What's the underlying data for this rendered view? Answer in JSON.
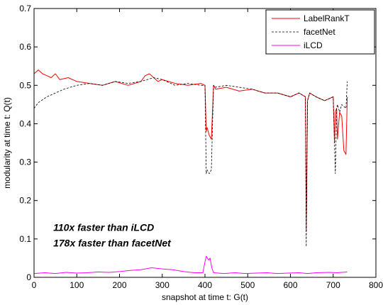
{
  "chart_data": {
    "type": "line",
    "xlabel": "snapshot at time t: G(t)",
    "ylabel": "modularity at time t: Q(t)",
    "xlim": [
      0,
      800
    ],
    "ylim": [
      0,
      0.7
    ],
    "xticks": [
      0,
      100,
      200,
      300,
      400,
      500,
      600,
      700,
      800
    ],
    "yticks": [
      0,
      0.1,
      0.2,
      0.3,
      0.4,
      0.5,
      0.6,
      0.7
    ],
    "xtick_labels": [
      "0",
      "100",
      "200",
      "300",
      "400",
      "500",
      "600",
      "700",
      "800"
    ],
    "ytick_labels": [
      "0",
      "0.1",
      "0.2",
      "0.3",
      "0.4",
      "0.5",
      "0.6",
      "0.7"
    ],
    "grid": false,
    "legend_position": "top-right",
    "annotations": [
      "110x faster than iLCD",
      "178x faster than facetNet"
    ],
    "series": [
      {
        "name": "LabelRankT",
        "color": "#ff0000",
        "style": "solid",
        "x": [
          0,
          10,
          20,
          30,
          40,
          50,
          60,
          80,
          100,
          130,
          160,
          190,
          220,
          250,
          260,
          270,
          280,
          290,
          300,
          330,
          360,
          390,
          400,
          403,
          405,
          410,
          415,
          420,
          425,
          450,
          480,
          510,
          540,
          570,
          600,
          620,
          635,
          637,
          640,
          645,
          660,
          680,
          700,
          703,
          705,
          708,
          710,
          715,
          720,
          725,
          730,
          733
        ],
        "y": [
          0.53,
          0.54,
          0.53,
          0.525,
          0.52,
          0.53,
          0.515,
          0.52,
          0.51,
          0.505,
          0.5,
          0.51,
          0.5,
          0.51,
          0.525,
          0.53,
          0.52,
          0.51,
          0.515,
          0.505,
          0.5,
          0.505,
          0.5,
          0.38,
          0.39,
          0.37,
          0.36,
          0.5,
          0.49,
          0.495,
          0.485,
          0.49,
          0.48,
          0.48,
          0.47,
          0.48,
          0.47,
          0.12,
          0.46,
          0.48,
          0.47,
          0.46,
          0.47,
          0.35,
          0.43,
          0.44,
          0.36,
          0.43,
          0.42,
          0.33,
          0.32,
          0.47
        ]
      },
      {
        "name": "facetNet",
        "color": "#000000",
        "style": "dashed",
        "x": [
          0,
          10,
          30,
          50,
          70,
          100,
          130,
          160,
          190,
          220,
          250,
          280,
          300,
          330,
          360,
          390,
          400,
          403,
          405,
          410,
          415,
          420,
          425,
          450,
          480,
          510,
          540,
          570,
          600,
          620,
          635,
          637,
          640,
          645,
          660,
          680,
          700,
          705,
          708,
          710,
          715,
          720,
          730,
          733
        ],
        "y": [
          0.44,
          0.455,
          0.47,
          0.48,
          0.49,
          0.5,
          0.505,
          0.5,
          0.51,
          0.505,
          0.51,
          0.52,
          0.515,
          0.5,
          0.505,
          0.5,
          0.5,
          0.27,
          0.28,
          0.27,
          0.28,
          0.5,
          0.495,
          0.5,
          0.495,
          0.49,
          0.48,
          0.48,
          0.47,
          0.48,
          0.47,
          0.08,
          0.46,
          0.48,
          0.47,
          0.46,
          0.47,
          0.27,
          0.44,
          0.45,
          0.43,
          0.45,
          0.44,
          0.51
        ]
      },
      {
        "name": "iLCD",
        "color": "#ff00ff",
        "style": "solid",
        "x": [
          0,
          25,
          50,
          75,
          100,
          125,
          150,
          175,
          200,
          225,
          250,
          275,
          300,
          325,
          350,
          375,
          395,
          400,
          403,
          406,
          409,
          412,
          416,
          420,
          445,
          470,
          495,
          520,
          545,
          570,
          595,
          620,
          640,
          660,
          690,
          710,
          733
        ],
        "y": [
          0.01,
          0.012,
          0.01,
          0.013,
          0.011,
          0.012,
          0.014,
          0.013,
          0.015,
          0.018,
          0.02,
          0.025,
          0.022,
          0.02,
          0.015,
          0.012,
          0.012,
          0.04,
          0.055,
          0.05,
          0.045,
          0.05,
          0.025,
          0.012,
          0.01,
          0.012,
          0.01,
          0.011,
          0.012,
          0.01,
          0.011,
          0.012,
          0.01,
          0.012,
          0.013,
          0.012,
          0.014
        ]
      }
    ]
  }
}
